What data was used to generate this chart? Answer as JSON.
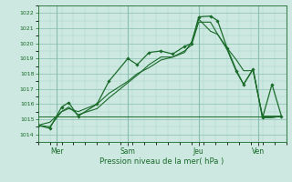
{
  "background_color": "#cce8e0",
  "grid_color_major": "#88bfb0",
  "grid_color_minor": "#aad4c8",
  "line_color": "#1a6b2a",
  "title": "Pression niveau de la mer( hPa )",
  "ylim": [
    1013.5,
    1022.5
  ],
  "yticks": [
    1014,
    1015,
    1016,
    1017,
    1018,
    1019,
    1020,
    1021,
    1022
  ],
  "day_labels": [
    "Mer",
    "Sam",
    "Jeu",
    "Ven"
  ],
  "day_positions": [
    8,
    38,
    68,
    93
  ],
  "day_vlines": [
    8,
    38,
    68,
    93
  ],
  "xlim": [
    0,
    105
  ],
  "series_main": {
    "x": [
      0,
      5,
      10,
      13,
      17,
      25,
      30,
      38,
      42,
      47,
      52,
      57,
      62,
      65,
      68,
      73,
      76,
      80,
      84,
      87,
      91,
      95,
      99,
      103
    ],
    "y": [
      1014.6,
      1014.4,
      1015.8,
      1016.1,
      1015.2,
      1016.0,
      1017.5,
      1019.0,
      1018.6,
      1019.4,
      1019.5,
      1019.3,
      1019.8,
      1020.0,
      1021.75,
      1021.8,
      1021.5,
      1019.7,
      1018.2,
      1017.3,
      1018.3,
      1015.1,
      1017.3,
      1015.2
    ]
  },
  "series_trend1": {
    "x": [
      0,
      5,
      10,
      13,
      17,
      25,
      30,
      38,
      42,
      47,
      52,
      57,
      62,
      65,
      68,
      73,
      76,
      80,
      84,
      87,
      91,
      95,
      99,
      103
    ],
    "y": [
      1014.6,
      1014.8,
      1015.5,
      1015.7,
      1015.5,
      1016.0,
      1016.7,
      1017.5,
      1018.0,
      1018.4,
      1018.9,
      1019.1,
      1019.5,
      1019.9,
      1021.4,
      1021.4,
      1020.6,
      1019.7,
      1018.9,
      1018.2,
      1018.2,
      1015.2,
      1015.2,
      1015.2
    ]
  },
  "series_trend2": {
    "x": [
      0,
      5,
      10,
      13,
      17,
      25,
      30,
      38,
      42,
      47,
      52,
      57,
      62,
      65,
      68,
      73,
      76,
      80,
      84,
      87,
      91,
      95,
      99,
      103
    ],
    "y": [
      1014.6,
      1014.5,
      1015.5,
      1015.8,
      1015.3,
      1015.7,
      1016.4,
      1017.4,
      1017.9,
      1018.6,
      1019.1,
      1019.1,
      1019.4,
      1020.1,
      1021.6,
      1020.8,
      1020.6,
      1019.6,
      1018.1,
      1017.3,
      1018.3,
      1015.1,
      1015.1,
      1015.2
    ]
  },
  "series_flat": {
    "x": [
      0,
      103
    ],
    "y": [
      1015.2,
      1015.2
    ]
  }
}
